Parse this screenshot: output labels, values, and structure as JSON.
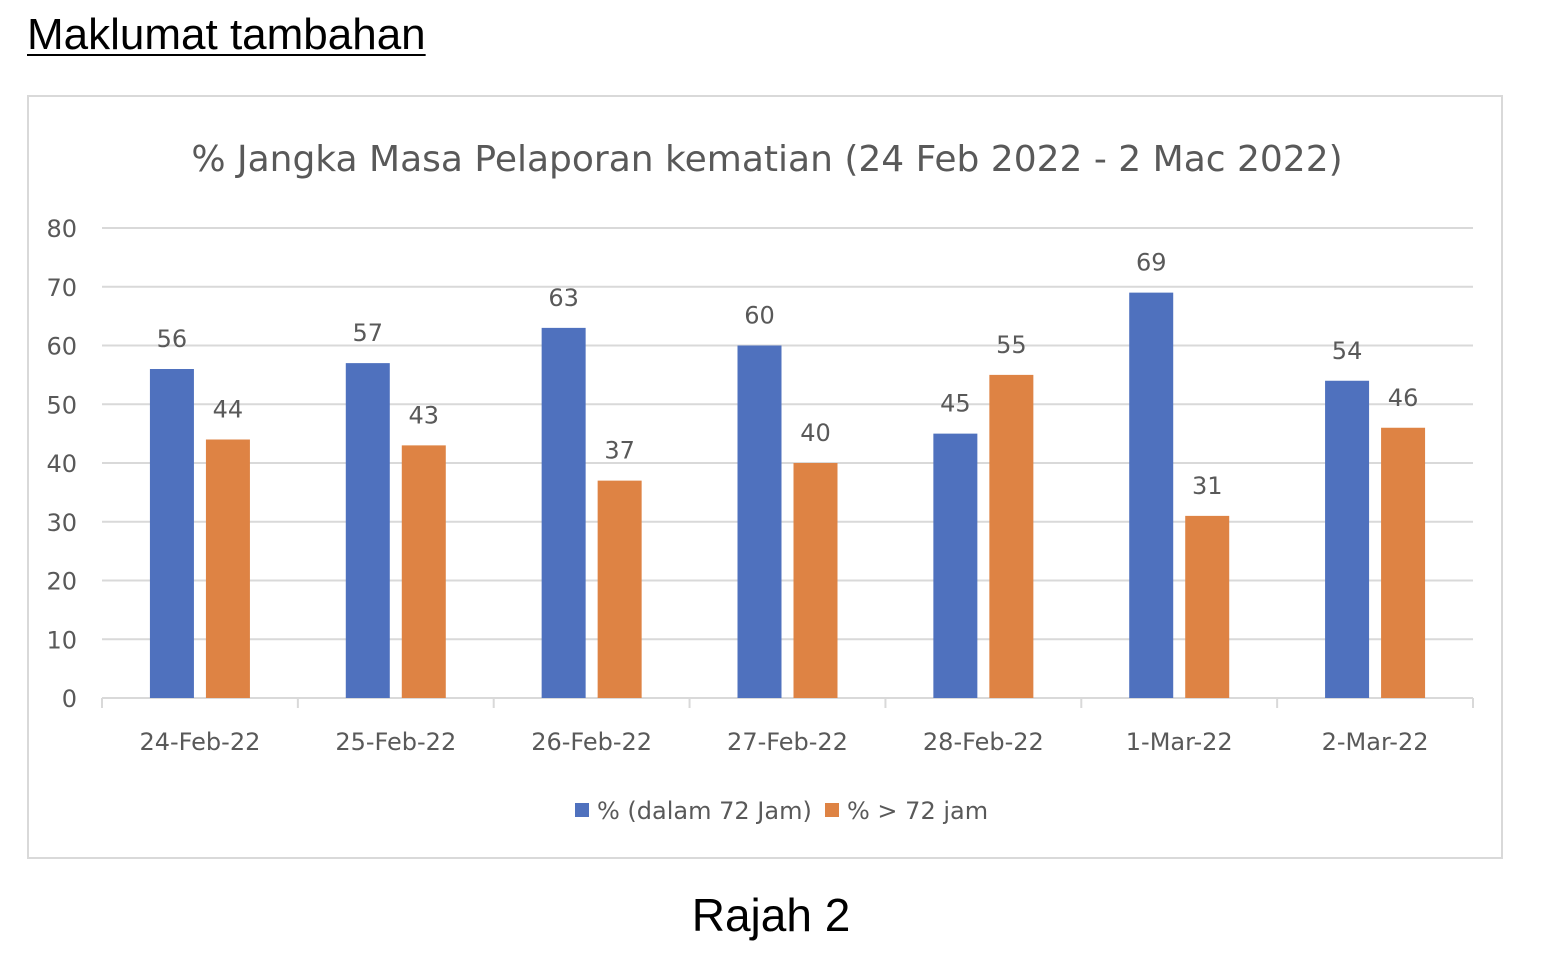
{
  "heading": "Maklumat tambahan",
  "caption": "Rajah 2",
  "colors": {
    "series1": "#4f71be",
    "series2": "#de8344",
    "grid": "#d9d9d9",
    "text": "#595959"
  },
  "chart_data": {
    "type": "bar",
    "title": "% Jangka Masa Pelaporan kematian (24 Feb 2022 - 2 Mac 2022)",
    "xlabel": "",
    "ylabel": "",
    "ylim": [
      0,
      80
    ],
    "yticks": [
      "0",
      "10",
      "20",
      "30",
      "40",
      "50",
      "60",
      "70",
      "80"
    ],
    "grid": true,
    "legend": "bottom",
    "categories": [
      "24-Feb-22",
      "25-Feb-22",
      "26-Feb-22",
      "27-Feb-22",
      "28-Feb-22",
      "1-Mar-22",
      "2-Mar-22"
    ],
    "series": [
      {
        "name": "% (dalam 72 Jam)",
        "values": [
          56,
          57,
          63,
          60,
          45,
          69,
          54
        ]
      },
      {
        "name": "% > 72 jam",
        "values": [
          44,
          43,
          37,
          40,
          55,
          31,
          46
        ]
      }
    ]
  }
}
